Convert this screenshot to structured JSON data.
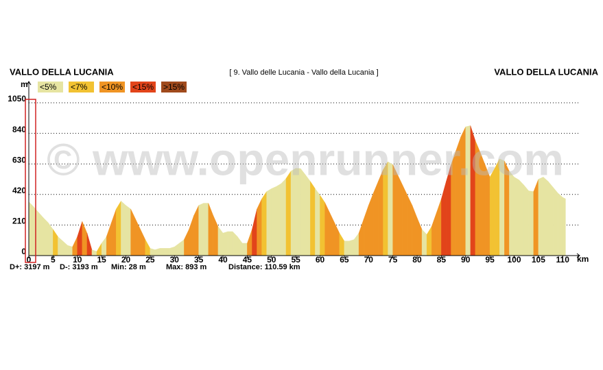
{
  "header": {
    "left": "VALLO DELLA LUCANIA",
    "center": "[ 9. Vallo delle Lucania - Vallo della Lucania ]",
    "right": "VALLO DELLA LUCANIA"
  },
  "chart_data": {
    "type": "area",
    "x": [
      0,
      1,
      2,
      3,
      4,
      5,
      6,
      7,
      8,
      9,
      10,
      11,
      12,
      13,
      14,
      15,
      16,
      17,
      18,
      19,
      20,
      21,
      22,
      23,
      24,
      25,
      26,
      27,
      28,
      29,
      30,
      31,
      32,
      33,
      34,
      35,
      36,
      37,
      38,
      39,
      40,
      41,
      42,
      43,
      44,
      45,
      46,
      47,
      48,
      49,
      50,
      51,
      52,
      53,
      54,
      55,
      56,
      57,
      58,
      59,
      60,
      61,
      62,
      63,
      64,
      65,
      66,
      67,
      68,
      69,
      70,
      71,
      72,
      73,
      74,
      75,
      76,
      77,
      78,
      79,
      80,
      81,
      82,
      83,
      84,
      85,
      86,
      87,
      88,
      89,
      90,
      91,
      92,
      93,
      94,
      95,
      96,
      97,
      98,
      99,
      100,
      101,
      102,
      103,
      104,
      105,
      106,
      107,
      108,
      109,
      110,
      110.59
    ],
    "values": [
      370,
      335,
      297,
      260,
      226,
      180,
      130,
      100,
      70,
      60,
      130,
      235,
      155,
      40,
      28,
      85,
      130,
      225,
      320,
      375,
      345,
      320,
      250,
      180,
      110,
      50,
      40,
      50,
      50,
      50,
      60,
      85,
      110,
      180,
      275,
      345,
      360,
      360,
      275,
      200,
      155,
      165,
      165,
      130,
      85,
      85,
      180,
      320,
      390,
      440,
      460,
      475,
      495,
      530,
      580,
      600,
      598,
      555,
      510,
      460,
      415,
      365,
      295,
      225,
      155,
      100,
      100,
      110,
      155,
      250,
      345,
      430,
      510,
      590,
      645,
      625,
      555,
      485,
      415,
      345,
      260,
      180,
      145,
      200,
      295,
      390,
      510,
      625,
      720,
      815,
      885,
      893,
      790,
      710,
      625,
      540,
      600,
      665,
      650,
      580,
      540,
      520,
      485,
      445,
      440,
      525,
      540,
      510,
      470,
      430,
      400,
      390
    ],
    "legend": [
      {
        "value": 5,
        "label": "<5%",
        "color": "#e6e4a2"
      },
      {
        "value": 7,
        "label": "<7%",
        "color": "#f2c232"
      },
      {
        "value": 10,
        "label": "<10%",
        "color": "#f09424"
      },
      {
        "value": 15,
        "label": "<15%",
        "color": "#e2441a"
      },
      {
        "value": 15,
        "label": ">15%",
        "color": "#a04a1c"
      }
    ],
    "xlim": [
      0,
      113.5
    ],
    "ylim": [
      0,
      1050
    ],
    "xticks": [
      0,
      5,
      10,
      15,
      20,
      25,
      30,
      35,
      40,
      45,
      50,
      55,
      60,
      65,
      70,
      75,
      80,
      85,
      90,
      95,
      100,
      105,
      110
    ],
    "yticks": [
      0,
      210,
      420,
      630,
      840,
      1050
    ],
    "x_label": "km",
    "y_label": "m",
    "grid": true,
    "watermark": "© www.openrunner.com",
    "stats": [
      "D+: 3197 m",
      "D-: 3193 m",
      "Min: 28 m",
      "Max: 893 m",
      "Distance: 110.59 km"
    ]
  }
}
